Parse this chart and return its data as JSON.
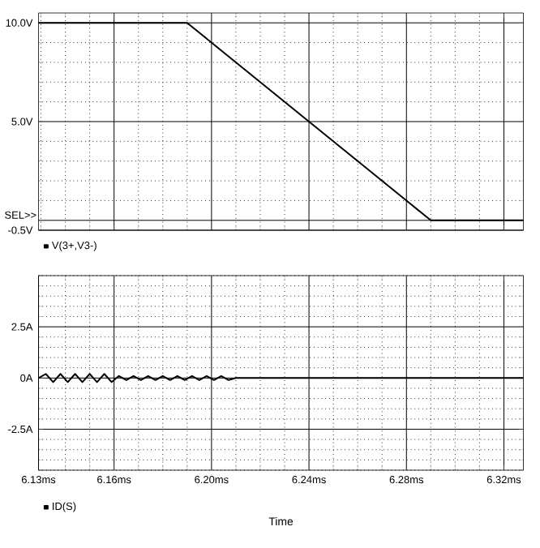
{
  "chart_data": [
    {
      "type": "line",
      "xlim": [
        6.129,
        6.328
      ],
      "ylim": [
        -0.5,
        10.5
      ],
      "tick_labels": "y",
      "grid": true,
      "legend": "bottom left",
      "marker": "none",
      "line_style": "solid",
      "xticks": [
        6.16,
        6.2,
        6.24,
        6.28,
        6.32
      ],
      "yticks": [
        {
          "value": -0.5,
          "label": "-0.5V"
        },
        {
          "value": 0,
          "label": null
        },
        {
          "value": 5,
          "label": "5.0V"
        },
        {
          "value": 10,
          "label": "10.0V"
        }
      ],
      "annotations": [
        "SEL>>"
      ],
      "series": [
        {
          "name": "V(3+,V3-)",
          "color": "#000000",
          "x": [
            6.129,
            6.19,
            6.24,
            6.29,
            6.328
          ],
          "values": [
            10,
            10,
            5,
            0,
            0
          ]
        }
      ]
    },
    {
      "type": "line",
      "xlim": [
        6.129,
        6.328
      ],
      "ylim": [
        -4.5,
        5
      ],
      "grid": true,
      "legend": "bottom left",
      "marker": "none",
      "line_style": "solid",
      "xlabel": "Time",
      "xticks": [
        {
          "value": 6.129,
          "label": "6.13ms"
        },
        {
          "value": 6.16,
          "label": "6.16ms"
        },
        {
          "value": 6.2,
          "label": "6.20ms"
        },
        {
          "value": 6.24,
          "label": "6.24ms"
        },
        {
          "value": 6.28,
          "label": "6.28ms"
        },
        {
          "value": 6.32,
          "label": "6.32ms"
        }
      ],
      "yticks": [
        {
          "value": -2.5,
          "label": "-2.5A"
        },
        {
          "value": 0,
          "label": "0A"
        },
        {
          "value": 2.5,
          "label": "2.5A"
        }
      ],
      "series": [
        {
          "name": "ID(S)",
          "color": "#000000",
          "x": [
            6.129,
            6.132,
            6.135,
            6.138,
            6.141,
            6.144,
            6.147,
            6.15,
            6.153,
            6.156,
            6.159,
            6.162,
            6.165,
            6.168,
            6.171,
            6.174,
            6.177,
            6.18,
            6.183,
            6.186,
            6.189,
            6.192,
            6.195,
            6.198,
            6.201,
            6.204,
            6.207,
            6.21,
            6.215,
            6.22,
            6.26,
            6.328
          ],
          "values": [
            0,
            0.2,
            -0.2,
            0.2,
            -0.2,
            0.2,
            -0.2,
            0.2,
            -0.2,
            0.2,
            -0.2,
            0.1,
            -0.1,
            0.1,
            -0.1,
            0.1,
            -0.1,
            0.1,
            -0.1,
            0.1,
            -0.1,
            0.1,
            -0.1,
            0.1,
            -0.1,
            0.1,
            -0.1,
            0,
            0,
            0,
            0,
            0
          ]
        }
      ]
    }
  ]
}
